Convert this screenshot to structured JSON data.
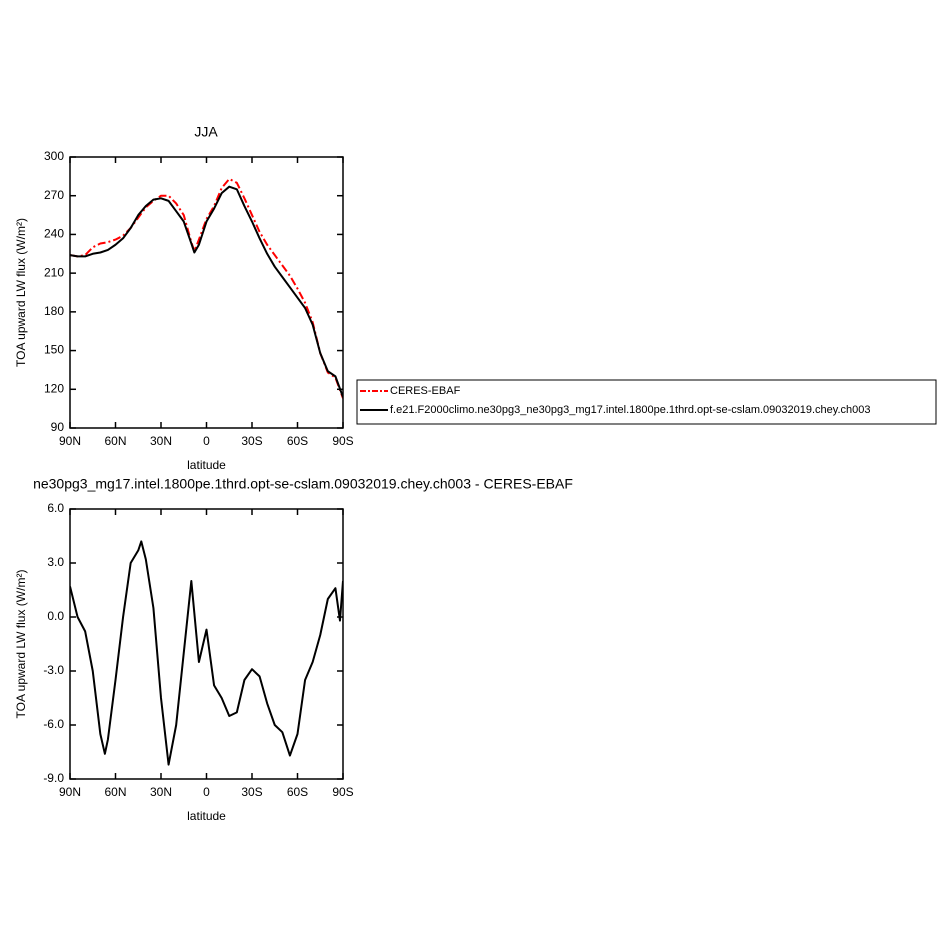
{
  "chart_data": [
    {
      "type": "line",
      "title": "JJA",
      "xlabel": "latitude",
      "ylabel": "TOA upward LW flux (W/m²)",
      "x": [
        90,
        85,
        80,
        75,
        70,
        65,
        60,
        55,
        50,
        45,
        40,
        35,
        30,
        25,
        20,
        15,
        10,
        8,
        5,
        0,
        -5,
        -10,
        -15,
        -20,
        -25,
        -30,
        -35,
        -40,
        -45,
        -50,
        -55,
        -60,
        -65,
        -70,
        -75,
        -80,
        -85,
        -90
      ],
      "series": [
        {
          "name": "CERES-EBAF",
          "color": "#ff0000",
          "linestyle": "dashed",
          "values": [
            224,
            223,
            224,
            230,
            233,
            234,
            236,
            239,
            245,
            253,
            261,
            266,
            270,
            270,
            264,
            255,
            234,
            227,
            236,
            252,
            262,
            276,
            283,
            280,
            268,
            255,
            242,
            232,
            224,
            216,
            208,
            198,
            187,
            172,
            148,
            133,
            129,
            113
          ]
        },
        {
          "name": "f.e21.F2000climo.ne30pg3_ne30pg3_mg17.intel.1800pe.1thrd.opt-se-cslam.09032019.chey.ch003",
          "color": "#000000",
          "linestyle": "solid",
          "values": [
            224,
            223,
            223,
            225,
            226,
            228,
            232,
            237,
            245,
            255,
            262,
            267,
            268,
            266,
            258,
            250,
            233,
            226,
            232,
            250,
            260,
            272,
            277,
            275,
            262,
            250,
            237,
            225,
            215,
            207,
            199,
            191,
            183,
            170,
            148,
            134,
            130,
            114
          ]
        }
      ],
      "xlim": [
        90,
        -90
      ],
      "xticks": [
        {
          "value": 90,
          "label": "90N"
        },
        {
          "value": 60,
          "label": "60N"
        },
        {
          "value": 30,
          "label": "30N"
        },
        0,
        {
          "value": -30,
          "label": "30S"
        },
        {
          "value": -60,
          "label": "60S"
        },
        {
          "value": -90,
          "label": "90S"
        }
      ],
      "ylim": [
        90,
        300
      ],
      "yticks": [
        90,
        120,
        150,
        180,
        210,
        240,
        270,
        300
      ]
    },
    {
      "type": "line",
      "title": "ne30pg3_mg17.intel.1800pe.1thrd.opt-se-cslam.09032019.chey.ch003 - CERES-EBAF",
      "xlabel": "latitude",
      "ylabel": "TOA upward LW flux (W/m²)",
      "x": [
        90,
        85,
        80,
        75,
        70,
        67,
        65,
        60,
        55,
        50,
        45,
        43,
        40,
        35,
        30,
        25,
        20,
        15,
        10,
        5,
        0,
        -5,
        -10,
        -15,
        -20,
        -25,
        -30,
        -35,
        -40,
        -45,
        -50,
        -55,
        -60,
        -65,
        -70,
        -75,
        -80,
        -85,
        -88,
        -90
      ],
      "series": [
        {
          "color": "#000000",
          "linestyle": "solid",
          "values": [
            1.7,
            0,
            -0.8,
            -3,
            -6.5,
            -7.6,
            -6.8,
            -3.5,
            0,
            3,
            3.7,
            4.2,
            3.2,
            0.5,
            -4.5,
            -8.2,
            -6,
            -2,
            2.0,
            -2.5,
            -0.7,
            -3.8,
            -4.5,
            -5.5,
            -5.3,
            -3.5,
            -2.9,
            -3.3,
            -4.8,
            -6.0,
            -6.4,
            -7.7,
            -6.5,
            -3.5,
            -2.5,
            -1.0,
            1.0,
            1.6,
            -0.2,
            2.0
          ]
        }
      ],
      "xlim": [
        90,
        -90
      ],
      "xticks": [
        {
          "value": 90,
          "label": "90N"
        },
        {
          "value": 60,
          "label": "60N"
        },
        {
          "value": 30,
          "label": "30N"
        },
        0,
        {
          "value": -30,
          "label": "30S"
        },
        {
          "value": -60,
          "label": "60S"
        },
        {
          "value": -90,
          "label": "90S"
        }
      ],
      "ylim": [
        -9,
        6
      ],
      "yticks": [
        {
          "value": -9,
          "label": "-9.0"
        },
        {
          "value": -6,
          "label": "-6.0"
        },
        {
          "value": -3,
          "label": "-3.0"
        },
        {
          "value": 0,
          "label": "0.0"
        },
        {
          "value": 3,
          "label": "3.0"
        },
        {
          "value": 6,
          "label": "6.0"
        }
      ]
    }
  ]
}
